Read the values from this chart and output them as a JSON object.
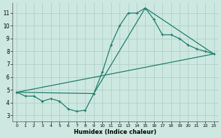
{
  "xlabel": "Humidex (Indice chaleur)",
  "xlim": [
    -0.5,
    23.5
  ],
  "ylim": [
    2.5,
    11.8
  ],
  "xticks": [
    0,
    1,
    2,
    3,
    4,
    5,
    6,
    7,
    8,
    9,
    10,
    11,
    12,
    13,
    14,
    15,
    16,
    17,
    18,
    19,
    20,
    21,
    22,
    23
  ],
  "yticks": [
    3,
    4,
    5,
    6,
    7,
    8,
    9,
    10,
    11
  ],
  "bg_color": "#cde8e0",
  "grid_color": "#aed0c8",
  "line_color": "#1a7a6a",
  "line1_x": [
    0,
    1,
    2,
    3,
    4,
    5,
    6,
    7,
    8,
    9,
    10,
    11,
    12,
    13,
    14,
    15,
    16,
    17,
    18,
    19,
    20,
    21,
    22,
    23
  ],
  "line1_y": [
    4.8,
    4.5,
    4.5,
    4.1,
    4.3,
    4.1,
    3.5,
    3.3,
    3.4,
    4.7,
    6.4,
    8.5,
    10.0,
    11.0,
    11.0,
    11.4,
    10.5,
    9.3,
    9.3,
    9.0,
    8.5,
    8.2,
    8.0,
    7.8
  ],
  "line2_x": [
    0,
    9,
    15,
    23
  ],
  "line2_y": [
    4.8,
    4.7,
    11.4,
    7.8
  ],
  "line3_x": [
    0,
    23
  ],
  "line3_y": [
    4.8,
    7.8
  ]
}
